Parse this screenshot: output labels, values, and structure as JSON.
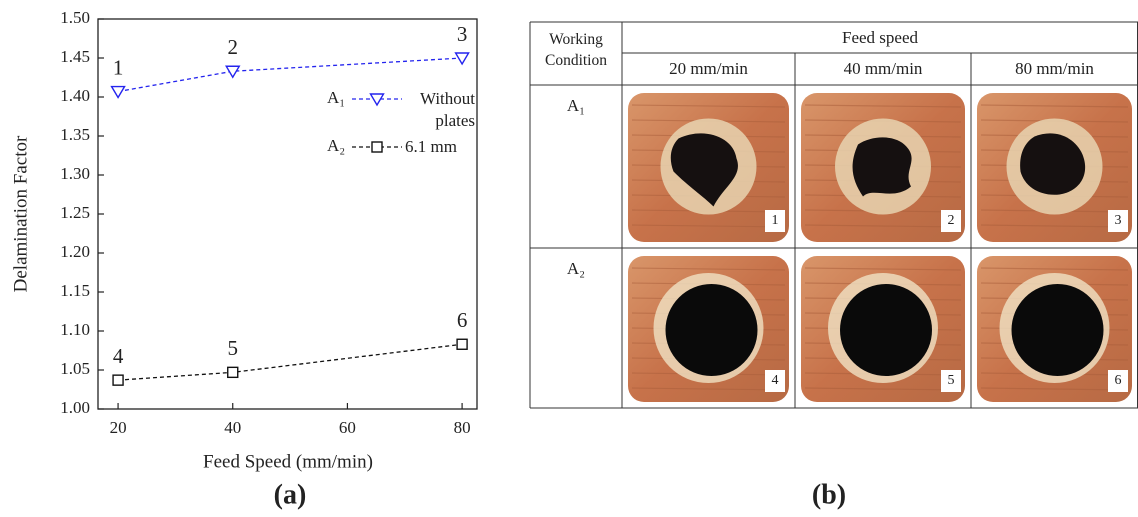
{
  "chart_data": {
    "type": "line",
    "y_label": "Delamination Factor",
    "x_label": "Feed Speed (mm/min)",
    "xlim": [
      16.5,
      82.6
    ],
    "ylim": [
      1.0,
      1.5
    ],
    "xticks": [
      20,
      40,
      60,
      80
    ],
    "yticks": [
      {
        "value": 1.0,
        "label": "1.00"
      },
      {
        "value": 1.05,
        "label": "1.05"
      },
      {
        "value": 1.1,
        "label": "1.10"
      },
      {
        "value": 1.15,
        "label": "1.15"
      },
      {
        "value": 1.2,
        "label": "1.20"
      },
      {
        "value": 1.25,
        "label": "1.25"
      },
      {
        "value": 1.3,
        "label": "1.30"
      },
      {
        "value": 1.35,
        "label": "1.35"
      },
      {
        "value": 1.4,
        "label": "1.40"
      },
      {
        "value": 1.45,
        "label": "1.45"
      },
      {
        "value": 1.5,
        "label": "1.50"
      }
    ],
    "legend": "upper right",
    "x": [
      20,
      40,
      80
    ],
    "series": [
      {
        "condition": "A₁",
        "name": "Without plates",
        "color": "#2424ee",
        "marker": "triangle-down",
        "values": [
          1.407,
          1.433,
          1.45
        ],
        "point_labels": [
          "1",
          "2",
          "3"
        ]
      },
      {
        "condition": "A₂",
        "name": "6.1 mm",
        "color": "#111111",
        "marker": "square",
        "values": [
          1.037,
          1.047,
          1.083
        ],
        "point_labels": [
          "4",
          "5",
          "6"
        ]
      }
    ],
    "panel_label": "(a)"
  },
  "table": {
    "header": {
      "condition": "Working Condition",
      "group": "Feed speed",
      "columns": [
        "20 mm/min",
        "40 mm/min",
        "80 mm/min"
      ]
    },
    "rows": [
      {
        "condition": "A₁",
        "photo_labels": [
          "1",
          "2",
          "3"
        ]
      },
      {
        "condition": "A₂",
        "photo_labels": [
          "4",
          "5",
          "6"
        ]
      }
    ],
    "panel_label": "(b)"
  }
}
